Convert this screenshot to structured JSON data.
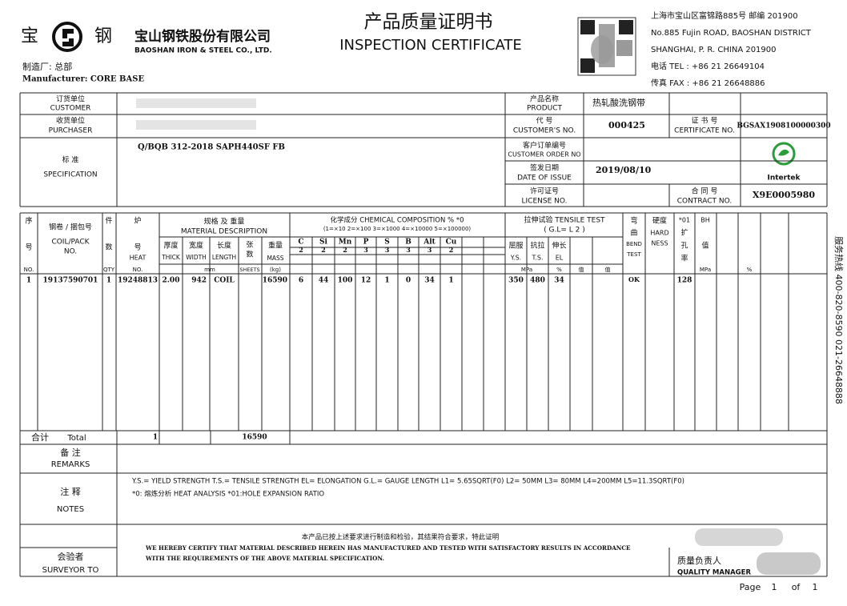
{
  "header": {
    "logo_left": "宝",
    "logo_right": "钢",
    "company_cn": "宝山钢铁股份有限公司",
    "company_en": "BAOSHAN IRON & STEEL CO., LTD.",
    "title_cn": "产品质量证明书",
    "title_en": "INSPECTION CERTIFICATE",
    "factory": "制造厂: 总部",
    "manufacturer": "Manufacturer: CORE BASE",
    "address": [
      "上海市宝山区富锦路885号 邮编 201900",
      "No.885 Fujin ROAD, BAOSHAN DISTRICT",
      "SHANGHAI, P. R. CHINA 201900",
      "电话  TEL : +86 21 26649104",
      "传真  FAX : +86 21 26648886"
    ]
  },
  "info": {
    "customer_cn": "订货单位",
    "customer_en": "CUSTOMER",
    "purchaser_cn": "收货单位",
    "purchaser_en": "PURCHASER",
    "spec_cn": "标 准",
    "spec_en": "SPECIFICATION",
    "spec": "Q/BQB 312-2018 SAPH440SF FB",
    "product_cn": "产品名称",
    "product_en": "PRODUCT",
    "product": "热轧酸洗钢带",
    "custno_cn": "代   号",
    "custno_en": "CUSTOMER'S NO.",
    "custno": "000425",
    "cert_cn": "证 书 号",
    "cert_en": "CERTIFICATE NO.",
    "cert": "BGSAX1908100000300",
    "order_cn": "客户订单编号",
    "order_en": "CUSTOMER ORDER NO",
    "date_cn": "签发日期",
    "date_en": "DATE OF ISSUE",
    "date": "2019/08/10",
    "license_cn": "许可证号",
    "license_en": "LICENSE NO.",
    "contract_cn": "合 同 号",
    "contract_en": "CONTRACT NO.",
    "contract": "X9E0005980",
    "intertek": "Intertek"
  },
  "table": {
    "no_cn1": "序",
    "no_cn2": "号",
    "no_en": "NO.",
    "coil_cn": "钢卷 / 捆包号",
    "coil_en1": "COIL/PACK",
    "coil_en2": "NO.",
    "qty_cn1": "件",
    "qty_cn2": "数",
    "qty_en": "QTY",
    "heat_cn1": "炉",
    "heat_cn2": "号",
    "heat_en1": "HEAT",
    "heat_en2": "NO.",
    "desc_cn": "规格 及 重量",
    "desc_en": "MATERIAL DESCRIPTION",
    "thick_cn": "厚度",
    "thick_en": "THICK",
    "width_cn": "宽度",
    "width_en": "WIDTH",
    "mm": "mm",
    "length_cn": "长度",
    "length_en": "LENGTH",
    "sheets_cn1": "张",
    "sheets_cn2": "数",
    "sheets_en": "SHEETS",
    "mass_cn": "重量",
    "mass_en": "MASS",
    "mass_unit": "(kg)",
    "chem_title": "化学成分  CHEMICAL COMPOSITION %  *0",
    "chem_scale": "(1=×10   2=×100   3=×1000   4=×10000   5=×100000)",
    "elements": [
      "C",
      "Si",
      "Mn",
      "P",
      "S",
      "B",
      "Alt",
      "Cu"
    ],
    "multipliers": [
      "2",
      "2",
      "2",
      "3",
      "3",
      "3",
      "3",
      "2"
    ],
    "tensile_title": "拉伸试验 TENSILE TEST",
    "tensile_gl": "( G.L= L 2          )",
    "ys_cn": "屈服",
    "ts_cn": "抗拉",
    "el_cn": "伸长",
    "ys_en": "Y.S.",
    "ts_en": "T.S.",
    "el_en": "EL",
    "mpa": "MPa",
    "pct": "%",
    "val1": "值",
    "val2": "值",
    "bend_cn1": "弯",
    "bend_cn2": "曲",
    "bend_en1": "BEND",
    "bend_en2": "TEST",
    "hard_cn": "硬度",
    "hard_en1": "HARD",
    "hard_en2": "NESS",
    "hole_star": "*01",
    "hole_cn1": "扩",
    "hole_cn2": "孔",
    "hole_cn3": "率",
    "bh": "BH",
    "bh_cn": "值",
    "bh_unit": "MPa",
    "bh_pct": "%",
    "row": {
      "no": "1",
      "coil": "19137590701",
      "qty": "1",
      "heat": "19248813",
      "thick": "2.00",
      "width": "942",
      "length": "COIL",
      "mass": "16590",
      "chem": [
        "6",
        "44",
        "100",
        "12",
        "1",
        "0",
        "34",
        "1"
      ],
      "ys": "350",
      "ts": "480",
      "el": "34",
      "bend": "OK",
      "hole": "128"
    },
    "total_cn": "合计",
    "total_en": "Total",
    "total_qty": "1",
    "total_mass": "16590"
  },
  "footer": {
    "remarks_cn": "备  注",
    "remarks_en": "REMARKS",
    "notes_cn": "注  释",
    "notes_en": "NOTES",
    "notes_line1": "Y.S.= YIELD STRENGTH     T.S.= TENSILE STRENGTH     EL= ELONGATION     G.L.= GAUGE LENGTH     L1= 5.65SQRT(F0)     L2= 50MM     L3= 80MM     L4=200MM     L5=11.3SQRT(F0)",
    "notes_line2": "*0: 熔炼分析  HEAT ANALYSIS   *01:HOLE EXPANSION RATIO",
    "certify_cn": "本产品已按上述要求进行制造和检验，其结果符合要求，特此证明",
    "certify_en1": "WE HEREBY CERTIFY THAT MATERIAL DESCRIBED HEREIN HAS MANUFACTURED AND TESTED WITH SATISFACTORY RESULTS IN ACCORDANCE",
    "certify_en2": "WITH THE REQUIREMENTS OF THE ABOVE MATERIAL SPECIFICATION.",
    "surveyor_cn": "会验者",
    "surveyor_en": "SURVEYOR TO",
    "qm_cn": "质量负责人",
    "qm_en": "QUALITY MANAGER",
    "page": "Page",
    "page_no": "1",
    "of": "of",
    "page_total": "1",
    "hotline": "服务热线  400-820-8590  021-26648888"
  }
}
